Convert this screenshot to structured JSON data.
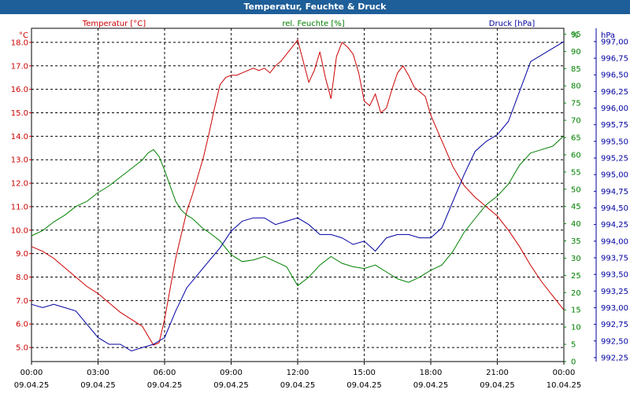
{
  "window": {
    "title": "Temperatur, Feuchte & Druck"
  },
  "colors": {
    "temp": "#cc0000",
    "hum": "#008000",
    "press": "#0000a0",
    "title_bg": "#1e5e99"
  },
  "chart_data": {
    "type": "line",
    "title": "Temperatur, Feuchte & Druck",
    "grid": true,
    "legend_placement": "top",
    "series": [
      {
        "name": "Temperatur [°C]",
        "unit_label": "°C",
        "axis": "left",
        "ylim": [
          4.4,
          18.6
        ],
        "ticks": [
          "5.0",
          "6.0",
          "7.0",
          "8.0",
          "9.0",
          "10.0",
          "11.0",
          "12.0",
          "13.0",
          "14.0",
          "15.0",
          "16.0",
          "17.0",
          "18.0"
        ],
        "tick_values": [
          5,
          6,
          7,
          8,
          9,
          10,
          11,
          12,
          13,
          14,
          15,
          16,
          17,
          18
        ],
        "x": [
          0,
          0.5,
          1,
          1.5,
          2,
          2.5,
          3,
          3.5,
          4,
          4.5,
          5,
          5.25,
          5.5,
          5.75,
          6,
          6.25,
          6.5,
          6.75,
          7,
          7.25,
          7.5,
          7.75,
          8,
          8.25,
          8.5,
          8.75,
          9,
          9.25,
          9.5,
          9.75,
          10,
          10.25,
          10.5,
          10.75,
          11,
          11.25,
          11.5,
          11.75,
          12,
          12.25,
          12.5,
          12.75,
          13,
          13.25,
          13.5,
          13.75,
          14,
          14.25,
          14.5,
          14.75,
          15,
          15.25,
          15.5,
          15.75,
          16,
          16.25,
          16.5,
          16.75,
          17,
          17.25,
          17.5,
          17.75,
          18,
          18.5,
          19,
          19.5,
          20,
          20.5,
          21,
          21.5,
          22,
          22.5,
          23,
          23.5,
          24
        ],
        "values": [
          9.3,
          9.1,
          8.8,
          8.4,
          8.0,
          7.6,
          7.3,
          6.9,
          6.5,
          6.2,
          5.9,
          5.5,
          5.1,
          5.2,
          6.2,
          7.5,
          8.8,
          9.8,
          10.8,
          11.5,
          12.3,
          13.1,
          14.1,
          15.2,
          16.2,
          16.5,
          16.6,
          16.6,
          16.7,
          16.8,
          16.9,
          16.8,
          16.9,
          16.7,
          17.0,
          17.2,
          17.5,
          17.8,
          18.1,
          17.2,
          16.3,
          16.8,
          17.6,
          16.5,
          15.6,
          17.4,
          18.0,
          17.8,
          17.5,
          16.7,
          15.5,
          15.3,
          15.8,
          15.0,
          15.2,
          16.0,
          16.7,
          17.0,
          16.6,
          16.1,
          15.9,
          15.7,
          14.9,
          13.8,
          12.7,
          11.9,
          11.4,
          11.0,
          10.6,
          10.0,
          9.3,
          8.5,
          7.8,
          7.2,
          6.6
        ]
      },
      {
        "name": "rel. Feuchte [%]",
        "unit_label": "%",
        "axis": "right-inner",
        "ylim": [
          0,
          96.7
        ],
        "ticks": [
          "0",
          "5",
          "10",
          "15",
          "20",
          "25",
          "30",
          "35",
          "40",
          "45",
          "50",
          "55",
          "60",
          "65",
          "70",
          "75",
          "80",
          "85",
          "90",
          "95"
        ],
        "tick_values": [
          0,
          5,
          10,
          15,
          20,
          25,
          30,
          35,
          40,
          45,
          50,
          55,
          60,
          65,
          70,
          75,
          80,
          85,
          90,
          95
        ],
        "x": [
          0,
          0.5,
          1,
          1.5,
          2,
          2.5,
          3,
          3.5,
          4,
          4.5,
          5,
          5.25,
          5.5,
          5.75,
          6,
          6.25,
          6.5,
          6.75,
          7,
          7.25,
          7.5,
          7.75,
          8,
          8.5,
          9,
          9.5,
          10,
          10.5,
          11,
          11.5,
          12,
          12.5,
          13,
          13.5,
          14,
          14.5,
          15,
          15.5,
          16,
          16.5,
          17,
          17.5,
          18,
          18.5,
          19,
          19.5,
          20,
          20.5,
          21,
          21.5,
          22,
          22.5,
          23,
          23.5,
          24
        ],
        "values": [
          36.5,
          38.0,
          40.5,
          42.5,
          45.0,
          46.5,
          49.0,
          51.0,
          53.5,
          56.0,
          58.5,
          60.5,
          61.5,
          59.5,
          55.5,
          51.0,
          46.5,
          44.0,
          42.5,
          41.5,
          40.0,
          38.5,
          37.5,
          35.0,
          31.0,
          29.0,
          29.5,
          30.5,
          29.0,
          27.5,
          22.0,
          24.5,
          28.0,
          30.5,
          28.5,
          27.5,
          27.0,
          28.0,
          26.0,
          24.0,
          23.0,
          24.5,
          26.5,
          28.0,
          32.0,
          37.5,
          41.5,
          45.5,
          48.0,
          51.5,
          57.0,
          60.5,
          61.5,
          62.5,
          65.5
        ]
      },
      {
        "name": "Druck [hPa]",
        "unit_label": "hPa",
        "axis": "right-outer",
        "ylim": [
          992.19,
          997.2
        ],
        "ticks": [
          "992,25",
          "992,50",
          "992,75",
          "993,00",
          "993,25",
          "993,50",
          "993,75",
          "994,00",
          "994,25",
          "994,50",
          "994,75",
          "995,00",
          "995,25",
          "995,50",
          "995,75",
          "996,00",
          "996,25",
          "996,50",
          "996,75",
          "997,00"
        ],
        "tick_values": [
          992.25,
          992.5,
          992.75,
          993.0,
          993.25,
          993.5,
          993.75,
          994.0,
          994.25,
          994.5,
          994.75,
          995.0,
          995.25,
          995.5,
          995.75,
          996.0,
          996.25,
          996.5,
          996.75,
          997.0
        ],
        "x": [
          0,
          0.5,
          1,
          1.5,
          2,
          2.5,
          3,
          3.5,
          4,
          4.5,
          5,
          5.5,
          6,
          6.5,
          7,
          7.5,
          8,
          8.5,
          9,
          9.5,
          10,
          10.5,
          11,
          11.5,
          12,
          12.5,
          13,
          13.5,
          14,
          14.5,
          15,
          15.5,
          16,
          16.5,
          17,
          17.5,
          18,
          18.5,
          19,
          19.5,
          20,
          20.5,
          21,
          21.5,
          22,
          22.5,
          23,
          23.5,
          24
        ],
        "values": [
          993.05,
          993.0,
          993.05,
          993.0,
          992.95,
          992.75,
          992.55,
          992.45,
          992.45,
          992.35,
          992.4,
          992.45,
          992.55,
          992.95,
          993.3,
          993.5,
          993.7,
          993.9,
          994.15,
          994.3,
          994.35,
          994.35,
          994.25,
          994.3,
          994.35,
          994.25,
          994.1,
          994.1,
          994.05,
          993.95,
          994.0,
          993.85,
          994.05,
          994.1,
          994.1,
          994.05,
          994.05,
          994.2,
          994.6,
          995.0,
          995.35,
          995.5,
          995.6,
          995.8,
          996.25,
          996.7,
          996.8,
          996.9,
          997.0
        ]
      }
    ],
    "x_axis": {
      "xlim": [
        0,
        24
      ],
      "ticks": [
        {
          "value": 0,
          "time": "00:00",
          "date": "09.04.25"
        },
        {
          "value": 3,
          "time": "03:00",
          "date": "09.04.25"
        },
        {
          "value": 6,
          "time": "06:00",
          "date": "09.04.25"
        },
        {
          "value": 9,
          "time": "09:00",
          "date": "09.04.25"
        },
        {
          "value": 12,
          "time": "12:00",
          "date": "09.04.25"
        },
        {
          "value": 15,
          "time": "15:00",
          "date": "09.04.25"
        },
        {
          "value": 18,
          "time": "18:00",
          "date": "09.04.25"
        },
        {
          "value": 21,
          "time": "21:00",
          "date": "09.04.25"
        },
        {
          "value": 24,
          "time": "00:00",
          "date": "10.04.25"
        }
      ]
    }
  }
}
